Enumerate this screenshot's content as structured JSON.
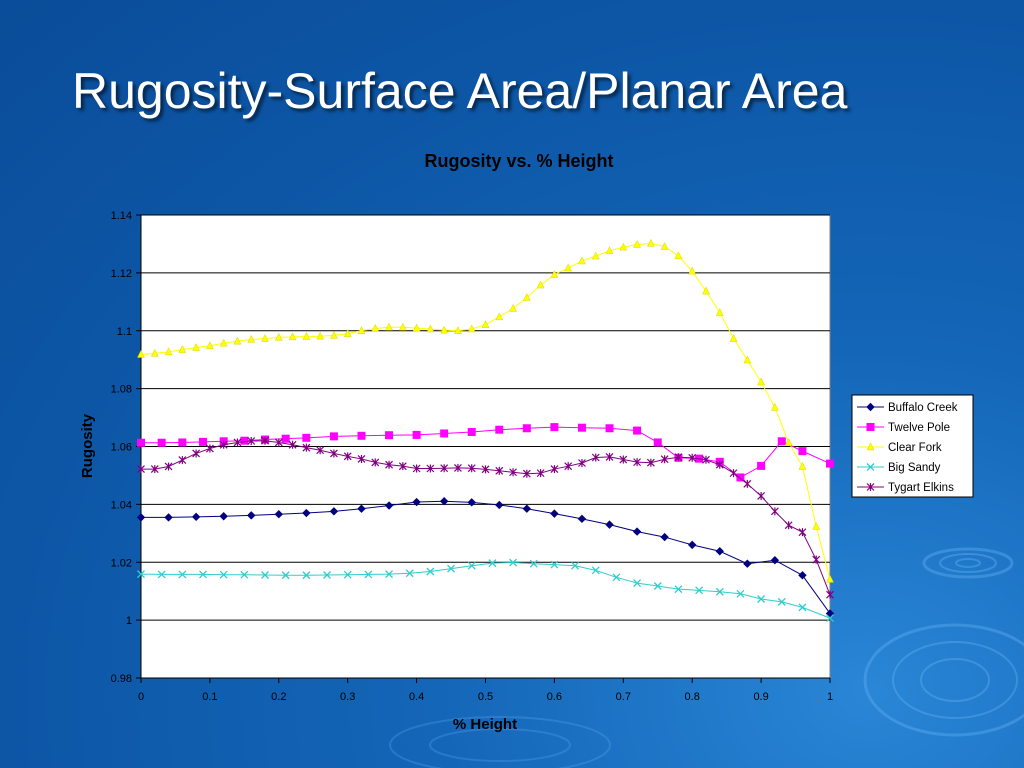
{
  "slide": {
    "title": "Rugosity-Surface Area/Planar Area"
  },
  "colors": {
    "background": "#0d56a6",
    "plot_area": "#ffffff",
    "gridline": "#000000"
  },
  "chart_data": {
    "type": "line",
    "title": "Rugosity vs. % Height",
    "xlabel": "% Height",
    "ylabel": "Rugosity",
    "xlim": [
      0,
      1
    ],
    "ylim": [
      0.98,
      1.14
    ],
    "x_ticks": [
      "0",
      "0.1",
      "0.2",
      "0.3",
      "0.4",
      "0.5",
      "0.6",
      "0.7",
      "0.8",
      "0.9",
      "1"
    ],
    "y_ticks": [
      "0.98",
      "1",
      "1.02",
      "1.04",
      "1.06",
      "1.08",
      "1.1",
      "1.12",
      "1.14"
    ],
    "grid": "horizontal",
    "legend_position": "right",
    "series": [
      {
        "name": "Buffalo Creek",
        "color": "#000080",
        "marker": "diamond",
        "x": [
          0,
          0.04,
          0.08,
          0.12,
          0.16,
          0.2,
          0.24,
          0.28,
          0.32,
          0.36,
          0.4,
          0.44,
          0.48,
          0.52,
          0.56,
          0.6,
          0.64,
          0.68,
          0.72,
          0.76,
          0.8,
          0.84,
          0.88,
          0.92,
          0.96,
          1.0
        ],
        "y": [
          1.0355,
          1.0355,
          1.0357,
          1.0359,
          1.0362,
          1.0366,
          1.037,
          1.0376,
          1.0385,
          1.0396,
          1.0408,
          1.0411,
          1.0407,
          1.0398,
          1.0385,
          1.0368,
          1.035,
          1.033,
          1.0306,
          1.0287,
          1.026,
          1.0238,
          1.0195,
          1.0207,
          1.0155,
          1.0023
        ]
      },
      {
        "name": "Twelve Pole",
        "color": "#ff00ff",
        "marker": "square",
        "x": [
          0,
          0.03,
          0.06,
          0.09,
          0.12,
          0.15,
          0.18,
          0.21,
          0.24,
          0.28,
          0.32,
          0.36,
          0.4,
          0.44,
          0.48,
          0.52,
          0.56,
          0.6,
          0.64,
          0.68,
          0.72,
          0.75,
          0.78,
          0.81,
          0.84,
          0.87,
          0.9,
          0.93,
          0.96,
          1.0
        ],
        "y": [
          1.0613,
          1.0613,
          1.0614,
          1.0616,
          1.0618,
          1.062,
          1.0624,
          1.0627,
          1.063,
          1.0635,
          1.0637,
          1.0639,
          1.064,
          1.0645,
          1.065,
          1.0658,
          1.0663,
          1.0667,
          1.0665,
          1.0663,
          1.0655,
          1.0614,
          1.0561,
          1.0558,
          1.0547,
          1.0493,
          1.0533,
          1.0618,
          1.0584,
          1.0541
        ]
      },
      {
        "name": "Clear Fork",
        "color": "#ffff00",
        "marker": "triangle",
        "x": [
          0,
          0.02,
          0.04,
          0.06,
          0.08,
          0.1,
          0.12,
          0.14,
          0.16,
          0.18,
          0.2,
          0.22,
          0.24,
          0.26,
          0.28,
          0.3,
          0.32,
          0.34,
          0.36,
          0.38,
          0.4,
          0.42,
          0.44,
          0.46,
          0.48,
          0.5,
          0.52,
          0.54,
          0.56,
          0.58,
          0.6,
          0.62,
          0.64,
          0.66,
          0.68,
          0.7,
          0.72,
          0.74,
          0.76,
          0.78,
          0.8,
          0.82,
          0.84,
          0.86,
          0.88,
          0.9,
          0.92,
          0.94,
          0.96,
          0.98,
          1.0
        ],
        "y": [
          1.0918,
          1.0922,
          1.0927,
          1.0935,
          1.0942,
          1.0948,
          1.0957,
          1.0964,
          1.097,
          1.0973,
          1.0977,
          1.0979,
          1.098,
          1.0981,
          1.0984,
          1.099,
          1.1,
          1.1008,
          1.1012,
          1.1012,
          1.1009,
          1.1006,
          1.1002,
          1.1,
          1.1006,
          1.1021,
          1.1048,
          1.1077,
          1.1115,
          1.1158,
          1.1194,
          1.1217,
          1.1241,
          1.1258,
          1.1276,
          1.1289,
          1.1298,
          1.1302,
          1.1291,
          1.1259,
          1.1206,
          1.1137,
          1.1063,
          1.0973,
          1.0899,
          1.0823,
          1.0735,
          1.0614,
          1.0531,
          1.0324,
          1.0141
        ]
      },
      {
        "name": "Big Sandy",
        "color": "#33cccc",
        "marker": "x",
        "x": [
          0,
          0.03,
          0.06,
          0.09,
          0.12,
          0.15,
          0.18,
          0.21,
          0.24,
          0.27,
          0.3,
          0.33,
          0.36,
          0.39,
          0.42,
          0.45,
          0.48,
          0.51,
          0.54,
          0.57,
          0.6,
          0.63,
          0.66,
          0.69,
          0.72,
          0.75,
          0.78,
          0.81,
          0.84,
          0.87,
          0.9,
          0.93,
          0.96,
          1.0
        ],
        "y": [
          1.0159,
          1.0158,
          1.0158,
          1.0158,
          1.0157,
          1.0157,
          1.0156,
          1.0155,
          1.0155,
          1.0156,
          1.0157,
          1.0158,
          1.0159,
          1.0162,
          1.0168,
          1.0178,
          1.0188,
          1.0197,
          1.0199,
          1.0195,
          1.0192,
          1.0188,
          1.0172,
          1.0148,
          1.0128,
          1.0118,
          1.0107,
          1.0103,
          1.0098,
          1.0091,
          1.0073,
          1.0063,
          1.0044,
          1.0007
        ]
      },
      {
        "name": "Tygart Elkins",
        "color": "#800080",
        "marker": "star",
        "x": [
          0,
          0.02,
          0.04,
          0.06,
          0.08,
          0.1,
          0.12,
          0.14,
          0.16,
          0.18,
          0.2,
          0.22,
          0.24,
          0.26,
          0.28,
          0.3,
          0.32,
          0.34,
          0.36,
          0.38,
          0.4,
          0.42,
          0.44,
          0.46,
          0.48,
          0.5,
          0.52,
          0.54,
          0.56,
          0.58,
          0.6,
          0.62,
          0.64,
          0.66,
          0.68,
          0.7,
          0.72,
          0.74,
          0.76,
          0.78,
          0.8,
          0.82,
          0.84,
          0.86,
          0.88,
          0.9,
          0.92,
          0.94,
          0.96,
          0.98,
          1.0
        ],
        "y": [
          1.0522,
          1.0522,
          1.0531,
          1.0553,
          1.0576,
          1.0593,
          1.0606,
          1.0614,
          1.0619,
          1.062,
          1.0614,
          1.0606,
          1.0596,
          1.0587,
          1.0576,
          1.0566,
          1.0557,
          1.0545,
          1.0537,
          1.0532,
          1.0524,
          1.0524,
          1.0525,
          1.0526,
          1.0525,
          1.0521,
          1.0516,
          1.0511,
          1.0506,
          1.0508,
          1.0522,
          1.0532,
          1.0543,
          1.0562,
          1.0564,
          1.0555,
          1.0546,
          1.0544,
          1.0556,
          1.0563,
          1.0561,
          1.0554,
          1.0537,
          1.0508,
          1.0471,
          1.0429,
          1.0376,
          1.0328,
          1.0304,
          1.0209,
          1.0088
        ]
      }
    ]
  }
}
